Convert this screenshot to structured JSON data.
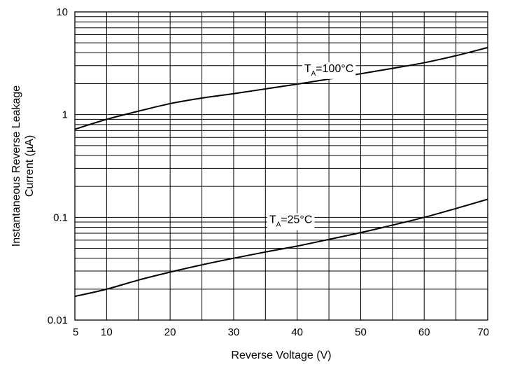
{
  "chart_data": {
    "type": "line",
    "title": "",
    "xlabel": "Reverse Voltage (V)",
    "ylabel_lines": [
      "Instantaneous Reverse Leakage",
      "Current (µA)"
    ],
    "x_scale": "linear",
    "y_scale": "log",
    "xlim": [
      5,
      70
    ],
    "ylim": [
      0.01,
      10
    ],
    "x_ticks": [
      5,
      10,
      20,
      30,
      40,
      50,
      60,
      70
    ],
    "x_tick_labels": [
      "5",
      "10",
      "20",
      "30",
      "40",
      "50",
      "60",
      "70"
    ],
    "y_ticks": [
      0.01,
      0.1,
      1,
      10
    ],
    "y_tick_labels": [
      "0.01",
      "0.1",
      "1",
      "10"
    ],
    "grid": true,
    "line_color": "#000000",
    "series": [
      {
        "label_main": "T",
        "label_sub": "A",
        "label_rest": "=100°C",
        "label_at": [
          45,
          2.6
        ],
        "x": [
          5,
          10,
          15,
          20,
          25,
          30,
          35,
          40,
          45,
          50,
          55,
          60,
          65,
          70
        ],
        "y": [
          0.72,
          0.9,
          1.08,
          1.28,
          1.45,
          1.6,
          1.78,
          1.98,
          2.22,
          2.5,
          2.82,
          3.2,
          3.75,
          4.5
        ]
      },
      {
        "label_main": "T",
        "label_sub": "A",
        "label_rest": "=25°C",
        "label_at": [
          39,
          0.088
        ],
        "x": [
          5,
          10,
          15,
          20,
          25,
          30,
          35,
          40,
          45,
          50,
          55,
          60,
          65,
          70
        ],
        "y": [
          0.017,
          0.02,
          0.0245,
          0.0293,
          0.0345,
          0.04,
          0.046,
          0.0525,
          0.061,
          0.071,
          0.084,
          0.1,
          0.122,
          0.15
        ]
      }
    ]
  }
}
